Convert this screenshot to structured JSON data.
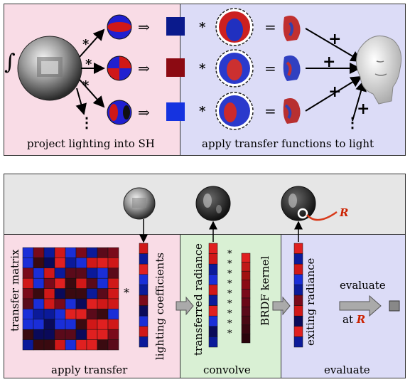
{
  "top": {
    "integral_symbol": "∫",
    "times": "*",
    "implies": "⇒",
    "equals": "=",
    "plus": "+",
    "ellipsis": "⋮",
    "left_caption": "project lighting into SH",
    "right_caption": "apply transfer functions to light",
    "coef_colors": [
      "#0a1a8c",
      "#8c0a12",
      "#1533e0"
    ]
  },
  "bottom": {
    "apply_caption": "apply transfer",
    "convolve_caption": "convolve",
    "evaluate_caption": "evaluate",
    "transfer_matrix_label": "transfer matrix",
    "lighting_coefficients_label": "lighting coefficients",
    "transferred_radiance_label": "transferred radiance",
    "brdf_kernel_label": "BRDF kernel",
    "exiting_radiance_label": "exiting radiance",
    "evaluate_word": "evaluate",
    "at_word": "at",
    "R_symbol": "R",
    "times": "*"
  }
}
